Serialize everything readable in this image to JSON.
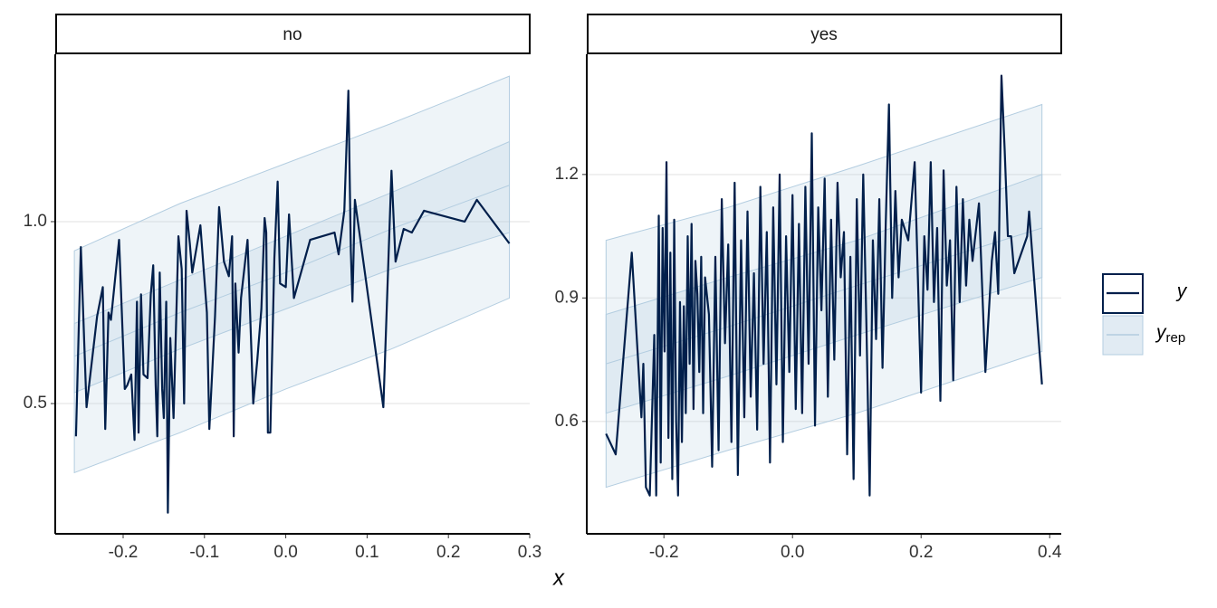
{
  "chart_data": [
    {
      "type": "line",
      "title": "no",
      "xlabel": "x",
      "x": [
        -0.258,
        -0.252,
        -0.245,
        -0.232,
        -0.225,
        -0.222,
        -0.218,
        -0.215,
        -0.205,
        -0.198,
        -0.195,
        -0.19,
        -0.186,
        -0.183,
        -0.181,
        -0.178,
        -0.175,
        -0.17,
        -0.166,
        -0.163,
        -0.16,
        -0.158,
        -0.155,
        -0.152,
        -0.15,
        -0.147,
        -0.145,
        -0.142,
        -0.138,
        -0.132,
        -0.128,
        -0.125,
        -0.122,
        -0.118,
        -0.115,
        -0.105,
        -0.097,
        -0.094,
        -0.087,
        -0.082,
        -0.076,
        -0.07,
        -0.066,
        -0.064,
        -0.062,
        -0.058,
        -0.055,
        -0.047,
        -0.04,
        -0.035,
        -0.03,
        -0.026,
        -0.024,
        -0.022,
        -0.019,
        -0.014,
        -0.01,
        -0.007,
        0.0,
        0.004,
        0.01,
        0.03,
        0.06,
        0.065,
        0.072,
        0.077,
        0.08,
        0.082,
        0.085,
        0.12,
        0.13,
        0.135,
        0.145,
        0.155,
        0.17,
        0.22,
        0.235,
        0.275
      ],
      "series": [
        {
          "name": "y",
          "color": "#011f4b",
          "values": [
            0.41,
            0.93,
            0.49,
            0.74,
            0.82,
            0.43,
            0.75,
            0.73,
            0.95,
            0.54,
            0.55,
            0.58,
            0.4,
            0.78,
            0.42,
            0.8,
            0.58,
            0.57,
            0.8,
            0.88,
            0.55,
            0.41,
            0.86,
            0.54,
            0.46,
            0.78,
            0.2,
            0.68,
            0.46,
            0.96,
            0.87,
            0.5,
            1.03,
            0.94,
            0.86,
            0.99,
            0.75,
            0.43,
            0.74,
            1.04,
            0.89,
            0.85,
            0.96,
            0.41,
            0.83,
            0.64,
            0.79,
            0.95,
            0.5,
            0.62,
            0.76,
            1.01,
            0.97,
            0.42,
            0.42,
            0.9,
            1.11,
            0.83,
            0.82,
            1.02,
            0.79,
            0.95,
            0.97,
            0.91,
            1.03,
            1.36,
            0.92,
            0.78,
            1.06,
            0.49,
            1.14,
            0.89,
            0.98,
            0.97,
            1.03,
            1.0,
            1.06,
            0.94
          ]
        }
      ],
      "ribbon": {
        "name": "y",
        "subscript": "rep",
        "color": "#b3cde0",
        "x": [
          -0.26,
          -0.13,
          0,
          0.13,
          0.275
        ],
        "outer_low": [
          0.31,
          0.42,
          0.54,
          0.65,
          0.79
        ],
        "outer_high": [
          0.92,
          1.05,
          1.16,
          1.27,
          1.4
        ],
        "inner_low": [
          0.53,
          0.65,
          0.76,
          0.87,
          0.97
        ],
        "inner_high": [
          0.72,
          0.84,
          0.96,
          1.08,
          1.22
        ],
        "median": [
          0.63,
          0.75,
          0.86,
          0.98,
          1.1
        ]
      },
      "xlim": [
        -0.2835,
        0.3
      ],
      "xticks": [
        -0.2,
        -0.1,
        {
          "value": 0,
          "label": "0.0"
        },
        0.1,
        0.2,
        0.3
      ],
      "ylim": [
        0.142,
        1.46
      ],
      "yticks": [
        0.5,
        {
          "value": 1,
          "label": "1.0"
        }
      ],
      "grid": true
    },
    {
      "type": "line",
      "title": "yes",
      "x": [
        -0.29,
        -0.275,
        -0.25,
        -0.235,
        -0.232,
        -0.228,
        -0.222,
        -0.215,
        -0.212,
        -0.208,
        -0.205,
        -0.202,
        -0.199,
        -0.196,
        -0.193,
        -0.19,
        -0.187,
        -0.184,
        -0.181,
        -0.178,
        -0.175,
        -0.172,
        -0.169,
        -0.166,
        -0.163,
        -0.16,
        -0.157,
        -0.154,
        -0.151,
        -0.148,
        -0.145,
        -0.142,
        -0.139,
        -0.136,
        -0.13,
        -0.125,
        -0.12,
        -0.115,
        -0.11,
        -0.105,
        -0.1,
        -0.095,
        -0.09,
        -0.085,
        -0.08,
        -0.075,
        -0.07,
        -0.065,
        -0.06,
        -0.055,
        -0.05,
        -0.045,
        -0.04,
        -0.035,
        -0.03,
        -0.025,
        -0.02,
        -0.015,
        -0.01,
        -0.005,
        0.0,
        0.005,
        0.01,
        0.015,
        0.02,
        0.025,
        0.03,
        0.035,
        0.04,
        0.045,
        0.05,
        0.055,
        0.06,
        0.065,
        0.07,
        0.075,
        0.08,
        0.085,
        0.09,
        0.095,
        0.1,
        0.105,
        0.11,
        0.115,
        0.12,
        0.125,
        0.13,
        0.135,
        0.14,
        0.145,
        0.15,
        0.155,
        0.16,
        0.165,
        0.17,
        0.18,
        0.19,
        0.2,
        0.205,
        0.21,
        0.215,
        0.22,
        0.225,
        0.23,
        0.235,
        0.24,
        0.245,
        0.25,
        0.255,
        0.26,
        0.265,
        0.27,
        0.275,
        0.28,
        0.29,
        0.3,
        0.31,
        0.315,
        0.32,
        0.325,
        0.33,
        0.335,
        0.34,
        0.345,
        0.365,
        0.368,
        0.388
      ],
      "series": [
        {
          "name": "y",
          "color": "#011f4b",
          "values": [
            0.57,
            0.52,
            1.01,
            0.61,
            0.74,
            0.44,
            0.42,
            0.81,
            0.42,
            1.1,
            0.5,
            1.07,
            0.77,
            1.23,
            0.56,
            1.01,
            0.46,
            1.09,
            0.6,
            0.42,
            0.89,
            0.55,
            0.88,
            0.62,
            1.05,
            0.74,
            1.08,
            0.63,
            0.99,
            0.91,
            0.72,
            1.0,
            0.62,
            0.95,
            0.86,
            0.49,
            1.0,
            0.53,
            1.14,
            0.79,
            1.03,
            0.55,
            1.18,
            0.47,
            1.04,
            0.61,
            1.11,
            0.66,
            0.96,
            0.58,
            1.17,
            0.74,
            1.06,
            0.5,
            1.12,
            0.69,
            1.2,
            0.55,
            1.05,
            0.72,
            1.15,
            0.63,
            1.08,
            0.62,
            1.17,
            0.74,
            1.3,
            0.59,
            1.12,
            0.87,
            1.19,
            0.66,
            1.09,
            0.75,
            1.18,
            0.95,
            1.06,
            0.52,
            1.0,
            0.46,
            1.14,
            0.76,
            1.2,
            0.83,
            0.42,
            1.04,
            0.8,
            1.14,
            0.73,
            1.08,
            1.37,
            0.9,
            1.16,
            0.95,
            1.09,
            1.04,
            1.23,
            0.67,
            1.05,
            0.92,
            1.23,
            0.89,
            1.07,
            0.65,
            1.21,
            0.93,
            1.04,
            0.7,
            1.17,
            0.89,
            1.14,
            0.93,
            1.09,
            0.99,
            1.13,
            0.72,
            0.99,
            1.06,
            0.91,
            1.44,
            1.26,
            1.05,
            1.05,
            0.96,
            1.05,
            1.11,
            0.69
          ]
        }
      ],
      "ribbon": {
        "name": "y",
        "subscript": "rep",
        "color": "#b3cde0",
        "x": [
          -0.29,
          -0.1,
          0.1,
          0.388
        ],
        "outer_low": [
          0.44,
          0.53,
          0.62,
          0.77
        ],
        "outer_high": [
          1.04,
          1.12,
          1.22,
          1.37
        ],
        "inner_low": [
          0.62,
          0.71,
          0.81,
          0.95
        ],
        "inner_high": [
          0.86,
          0.95,
          1.04,
          1.2
        ],
        "median": [
          0.74,
          0.83,
          0.93,
          1.07
        ]
      },
      "xlim": [
        -0.32,
        0.418
      ],
      "xticks": [
        -0.2,
        {
          "value": 0,
          "label": "0.0"
        },
        0.2,
        0.4
      ],
      "ylim": [
        0.327,
        1.492
      ],
      "yticks": [
        0.6,
        0.9,
        1.2
      ],
      "grid": true
    }
  ]
}
